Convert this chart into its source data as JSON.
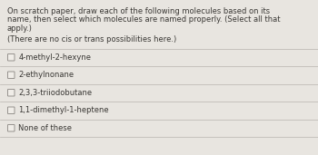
{
  "bg_color": "#ccc8c2",
  "panel_color": "#e8e5e0",
  "line_color": "#b8b4ae",
  "title_lines": [
    "On scratch paper, draw each of the following molecules based on its",
    "name, then select which molecules are named properly. (Select all that",
    "apply.)"
  ],
  "subtitle": "(There are no cis or trans possibilities here.)",
  "options": [
    "4-methyl-2-hexyne",
    "2-ethylnonane",
    "2,3,3-triiodobutane",
    "1,1-dimethyl-1-heptene",
    "None of these"
  ],
  "text_color": "#3a3835",
  "title_fontsize": 6.0,
  "subtitle_fontsize": 6.0,
  "option_fontsize": 6.0,
  "checkbox_edge_color": "#888480"
}
